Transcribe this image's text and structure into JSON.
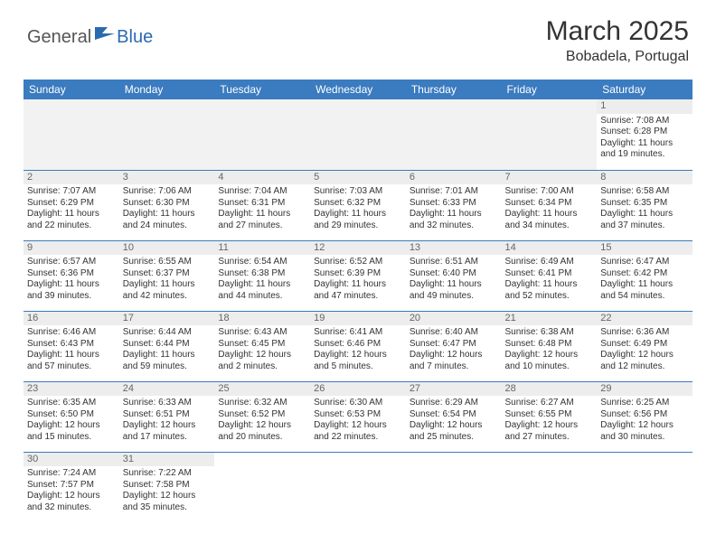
{
  "logo": {
    "part1": "General",
    "part2": "Blue"
  },
  "title": "March 2025",
  "location": "Bobadela, Portugal",
  "colors": {
    "header_bg": "#3b7bbf",
    "logo_blue": "#2a6bb0",
    "daynum_bg": "#ededed"
  },
  "weekdays": [
    "Sunday",
    "Monday",
    "Tuesday",
    "Wednesday",
    "Thursday",
    "Friday",
    "Saturday"
  ],
  "weeks": [
    [
      null,
      null,
      null,
      null,
      null,
      null,
      {
        "n": "1",
        "sr": "Sunrise: 7:08 AM",
        "ss": "Sunset: 6:28 PM",
        "dl": "Daylight: 11 hours and 19 minutes."
      }
    ],
    [
      {
        "n": "2",
        "sr": "Sunrise: 7:07 AM",
        "ss": "Sunset: 6:29 PM",
        "dl": "Daylight: 11 hours and 22 minutes."
      },
      {
        "n": "3",
        "sr": "Sunrise: 7:06 AM",
        "ss": "Sunset: 6:30 PM",
        "dl": "Daylight: 11 hours and 24 minutes."
      },
      {
        "n": "4",
        "sr": "Sunrise: 7:04 AM",
        "ss": "Sunset: 6:31 PM",
        "dl": "Daylight: 11 hours and 27 minutes."
      },
      {
        "n": "5",
        "sr": "Sunrise: 7:03 AM",
        "ss": "Sunset: 6:32 PM",
        "dl": "Daylight: 11 hours and 29 minutes."
      },
      {
        "n": "6",
        "sr": "Sunrise: 7:01 AM",
        "ss": "Sunset: 6:33 PM",
        "dl": "Daylight: 11 hours and 32 minutes."
      },
      {
        "n": "7",
        "sr": "Sunrise: 7:00 AM",
        "ss": "Sunset: 6:34 PM",
        "dl": "Daylight: 11 hours and 34 minutes."
      },
      {
        "n": "8",
        "sr": "Sunrise: 6:58 AM",
        "ss": "Sunset: 6:35 PM",
        "dl": "Daylight: 11 hours and 37 minutes."
      }
    ],
    [
      {
        "n": "9",
        "sr": "Sunrise: 6:57 AM",
        "ss": "Sunset: 6:36 PM",
        "dl": "Daylight: 11 hours and 39 minutes."
      },
      {
        "n": "10",
        "sr": "Sunrise: 6:55 AM",
        "ss": "Sunset: 6:37 PM",
        "dl": "Daylight: 11 hours and 42 minutes."
      },
      {
        "n": "11",
        "sr": "Sunrise: 6:54 AM",
        "ss": "Sunset: 6:38 PM",
        "dl": "Daylight: 11 hours and 44 minutes."
      },
      {
        "n": "12",
        "sr": "Sunrise: 6:52 AM",
        "ss": "Sunset: 6:39 PM",
        "dl": "Daylight: 11 hours and 47 minutes."
      },
      {
        "n": "13",
        "sr": "Sunrise: 6:51 AM",
        "ss": "Sunset: 6:40 PM",
        "dl": "Daylight: 11 hours and 49 minutes."
      },
      {
        "n": "14",
        "sr": "Sunrise: 6:49 AM",
        "ss": "Sunset: 6:41 PM",
        "dl": "Daylight: 11 hours and 52 minutes."
      },
      {
        "n": "15",
        "sr": "Sunrise: 6:47 AM",
        "ss": "Sunset: 6:42 PM",
        "dl": "Daylight: 11 hours and 54 minutes."
      }
    ],
    [
      {
        "n": "16",
        "sr": "Sunrise: 6:46 AM",
        "ss": "Sunset: 6:43 PM",
        "dl": "Daylight: 11 hours and 57 minutes."
      },
      {
        "n": "17",
        "sr": "Sunrise: 6:44 AM",
        "ss": "Sunset: 6:44 PM",
        "dl": "Daylight: 11 hours and 59 minutes."
      },
      {
        "n": "18",
        "sr": "Sunrise: 6:43 AM",
        "ss": "Sunset: 6:45 PM",
        "dl": "Daylight: 12 hours and 2 minutes."
      },
      {
        "n": "19",
        "sr": "Sunrise: 6:41 AM",
        "ss": "Sunset: 6:46 PM",
        "dl": "Daylight: 12 hours and 5 minutes."
      },
      {
        "n": "20",
        "sr": "Sunrise: 6:40 AM",
        "ss": "Sunset: 6:47 PM",
        "dl": "Daylight: 12 hours and 7 minutes."
      },
      {
        "n": "21",
        "sr": "Sunrise: 6:38 AM",
        "ss": "Sunset: 6:48 PM",
        "dl": "Daylight: 12 hours and 10 minutes."
      },
      {
        "n": "22",
        "sr": "Sunrise: 6:36 AM",
        "ss": "Sunset: 6:49 PM",
        "dl": "Daylight: 12 hours and 12 minutes."
      }
    ],
    [
      {
        "n": "23",
        "sr": "Sunrise: 6:35 AM",
        "ss": "Sunset: 6:50 PM",
        "dl": "Daylight: 12 hours and 15 minutes."
      },
      {
        "n": "24",
        "sr": "Sunrise: 6:33 AM",
        "ss": "Sunset: 6:51 PM",
        "dl": "Daylight: 12 hours and 17 minutes."
      },
      {
        "n": "25",
        "sr": "Sunrise: 6:32 AM",
        "ss": "Sunset: 6:52 PM",
        "dl": "Daylight: 12 hours and 20 minutes."
      },
      {
        "n": "26",
        "sr": "Sunrise: 6:30 AM",
        "ss": "Sunset: 6:53 PM",
        "dl": "Daylight: 12 hours and 22 minutes."
      },
      {
        "n": "27",
        "sr": "Sunrise: 6:29 AM",
        "ss": "Sunset: 6:54 PM",
        "dl": "Daylight: 12 hours and 25 minutes."
      },
      {
        "n": "28",
        "sr": "Sunrise: 6:27 AM",
        "ss": "Sunset: 6:55 PM",
        "dl": "Daylight: 12 hours and 27 minutes."
      },
      {
        "n": "29",
        "sr": "Sunrise: 6:25 AM",
        "ss": "Sunset: 6:56 PM",
        "dl": "Daylight: 12 hours and 30 minutes."
      }
    ],
    [
      {
        "n": "30",
        "sr": "Sunrise: 7:24 AM",
        "ss": "Sunset: 7:57 PM",
        "dl": "Daylight: 12 hours and 32 minutes."
      },
      {
        "n": "31",
        "sr": "Sunrise: 7:22 AM",
        "ss": "Sunset: 7:58 PM",
        "dl": "Daylight: 12 hours and 35 minutes."
      },
      null,
      null,
      null,
      null,
      null
    ]
  ]
}
